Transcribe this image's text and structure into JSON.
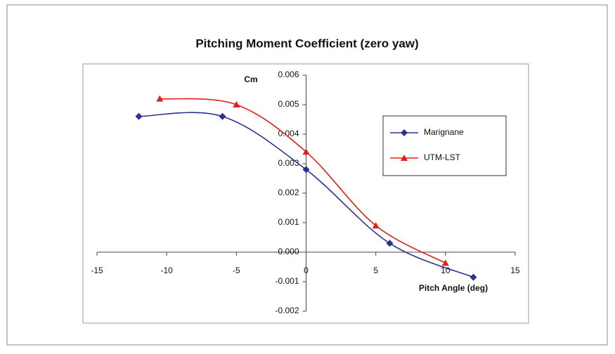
{
  "chart_data": {
    "type": "line",
    "title": "Pitching Moment Coefficient (zero yaw)",
    "x_label": "Pitch Angle (deg)",
    "y_label": "Cm",
    "xlim": [
      -15,
      15
    ],
    "xticks": [
      -15,
      -10,
      -5,
      0,
      5,
      10,
      15
    ],
    "ylim": [
      -0.002,
      0.006
    ],
    "yticks": [
      -0.002,
      -0.001,
      {
        "value": 0,
        "label": "0.000"
      },
      0.001,
      0.002,
      0.003,
      0.004,
      0.005,
      0.006
    ],
    "grid": false,
    "legend": "upper right",
    "smooth": true,
    "series": [
      {
        "name": "Marignane",
        "color": "#2b3190",
        "marker": "diamond",
        "x": [
          -12,
          -6,
          0,
          6,
          12
        ],
        "values": [
          0.0046,
          0.0046,
          0.0028,
          0.0003,
          -0.00085
        ]
      },
      {
        "name": "UTM-LST",
        "color": "#e0201b",
        "marker": "triangle",
        "x": [
          -10.5,
          -5,
          0,
          5,
          10
        ],
        "values": [
          0.0052,
          0.005,
          0.0034,
          0.0009,
          -0.00037
        ]
      }
    ]
  }
}
